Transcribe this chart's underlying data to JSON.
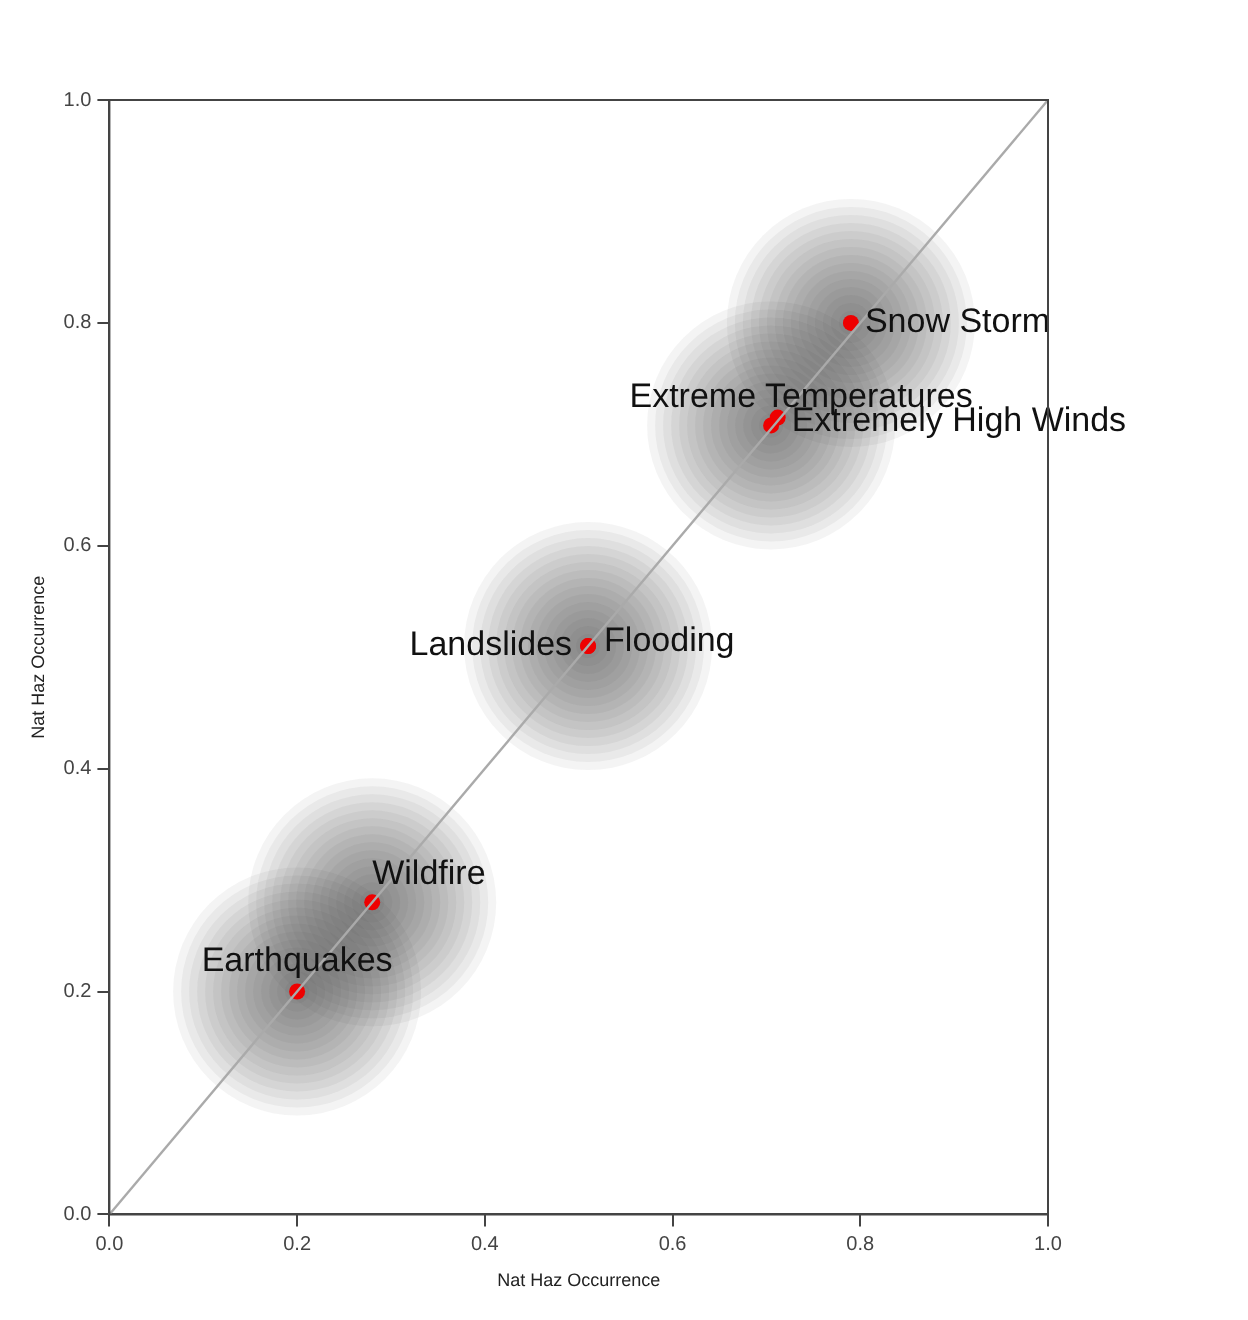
{
  "chart_data": {
    "type": "scatter",
    "xlabel": "Nat Haz Occurrence",
    "ylabel": "Nat Haz Occurrence",
    "xlim": [
      0,
      1
    ],
    "ylim": [
      0,
      1
    ],
    "xticks": [
      {
        "value": 0,
        "label": "0.0"
      },
      {
        "value": 0.2,
        "label": "0.2"
      },
      {
        "value": 0.4,
        "label": "0.4"
      },
      {
        "value": 0.6,
        "label": "0.6"
      },
      {
        "value": 0.8,
        "label": "0.8"
      },
      {
        "value": 1,
        "label": "1.0"
      }
    ],
    "yticks": [
      {
        "value": 0,
        "label": "0.0"
      },
      {
        "value": 0.2,
        "label": "0.2"
      },
      {
        "value": 0.4,
        "label": "0.4"
      },
      {
        "value": 0.6,
        "label": "0.6"
      },
      {
        "value": 0.8,
        "label": "0.8"
      },
      {
        "value": 1,
        "label": "1.0"
      }
    ],
    "grid": false,
    "legend": false,
    "marker": "circle",
    "series": [
      {
        "type": "line",
        "color": "#aaaaaa",
        "x": [
          0,
          1
        ],
        "values": [
          0,
          1
        ],
        "marker": "none"
      },
      {
        "type": "scatter",
        "color": "#ee0000",
        "x": [
          0.2,
          0.28,
          0.51,
          0.51,
          0.705,
          0.712,
          0.79
        ],
        "values": [
          0.2,
          0.28,
          0.51,
          0.51,
          0.708,
          0.715,
          0.8
        ]
      }
    ],
    "annotations": [
      {
        "text": "Earthquakes",
        "x": 0.2,
        "y": 0.2
      },
      {
        "text": "Wildfire",
        "x": 0.28,
        "y": 0.28
      },
      {
        "text": "Landslides",
        "x": 0.51,
        "y": 0.51
      },
      {
        "text": "Flooding",
        "x": 0.51,
        "y": 0.51
      },
      {
        "text": "Extreme Temperatures",
        "x": 0.705,
        "y": 0.708
      },
      {
        "text": "Extremely High Winds",
        "x": 0.712,
        "y": 0.715
      },
      {
        "text": "Snow Storm",
        "x": 0.79,
        "y": 0.8
      }
    ]
  }
}
